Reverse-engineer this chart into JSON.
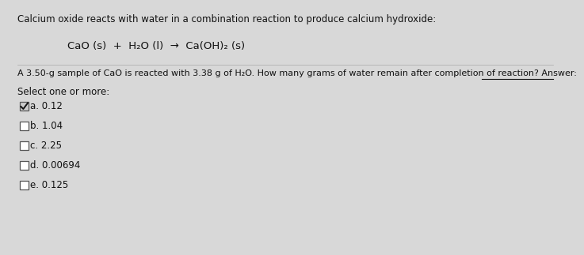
{
  "bg_color": "#d8d8d8",
  "text_color": "#111111",
  "title_text": "Calcium oxide reacts with water in a combination reaction to produce calcium hydroxide:",
  "equation": "CaO (s)  +  H₂O (l)  →  Ca(OH)₂ (s)",
  "question_part1": "A 3.50-g sample of CaO is reacted with 3.38 g of H₂O. How many grams of water remain after completion of reaction? Answer:",
  "select_label": "Select one or more:",
  "options": [
    {
      "label": "a. 0.12",
      "checked": true
    },
    {
      "label": "b. 1.04",
      "checked": false
    },
    {
      "label": "c. 2.25",
      "checked": false
    },
    {
      "label": "d. 0.00694",
      "checked": false
    },
    {
      "label": "e. 0.125",
      "checked": false
    }
  ],
  "title_fontsize": 8.5,
  "eq_fontsize": 9.5,
  "question_fontsize": 8.0,
  "select_fontsize": 8.5,
  "option_fontsize": 8.5
}
